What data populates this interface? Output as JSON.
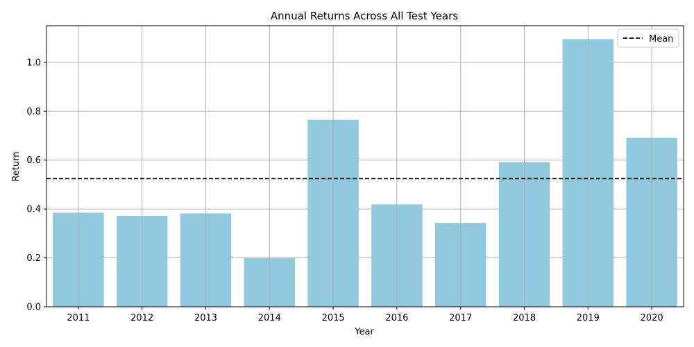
{
  "chart_data": {
    "type": "bar",
    "title": "Annual Returns Across All Test Years",
    "xlabel": "Year",
    "ylabel": "Return",
    "categories": [
      "2011",
      "2012",
      "2013",
      "2014",
      "2015",
      "2016",
      "2017",
      "2018",
      "2019",
      "2020"
    ],
    "values": [
      0.385,
      0.372,
      0.382,
      0.199,
      0.765,
      0.419,
      0.343,
      0.592,
      1.095,
      0.691
    ],
    "ylim": [
      0,
      1.15
    ],
    "yticks": [
      "0.0",
      "0.2",
      "0.4",
      "0.6",
      "0.8",
      "1.0"
    ],
    "bar_color": "#92c9de",
    "grid": true,
    "mean": 0.5243,
    "mean_color": "#000000",
    "legend": {
      "position": "top-right",
      "entries": [
        "Mean"
      ]
    }
  }
}
